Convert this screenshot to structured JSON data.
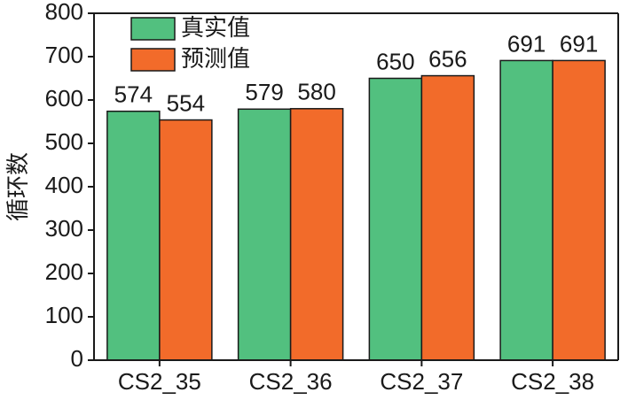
{
  "chart_data": {
    "type": "bar",
    "y_label": "循环数",
    "categories": [
      "CS2_35",
      "CS2_36",
      "CS2_37",
      "CS2_38"
    ],
    "series": [
      {
        "name": "真实值",
        "color": "#52c07f",
        "values": [
          574,
          579,
          650,
          691
        ]
      },
      {
        "name": "预测值",
        "color": "#f26b2a",
        "values": [
          554,
          580,
          656,
          691
        ]
      }
    ],
    "ylim": [
      0,
      800
    ],
    "yticks": [
      0,
      100,
      200,
      300,
      400,
      500,
      600,
      700,
      800
    ],
    "legend": "upper left"
  }
}
